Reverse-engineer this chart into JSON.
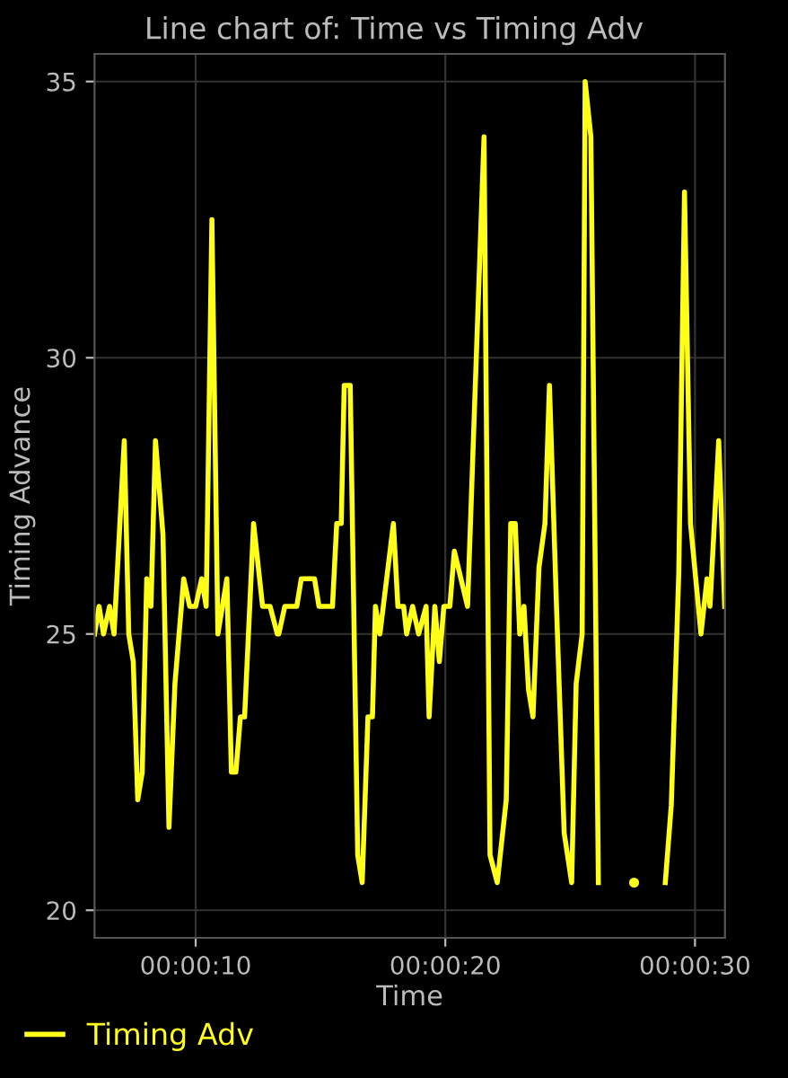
{
  "chart_data": {
    "type": "line",
    "title": "Line chart of: Time vs Timing Adv",
    "xlabel": "Time",
    "ylabel": "Timing Advance",
    "x": [
      5.95,
      6.13,
      6.31,
      6.55,
      6.73,
      7.14,
      7.32,
      7.5,
      7.68,
      7.86,
      8.04,
      8.21,
      8.39,
      8.69,
      8.93,
      9.17,
      9.52,
      9.76,
      10.0,
      10.24,
      10.42,
      10.65,
      10.89,
      11.25,
      11.43,
      11.61,
      11.79,
      11.96,
      12.32,
      12.68,
      12.98,
      13.27,
      13.33,
      13.57,
      14.05,
      14.23,
      14.76,
      14.94,
      15.48,
      15.65,
      15.83,
      15.95,
      16.19,
      16.49,
      16.67,
      16.9,
      17.08,
      17.2,
      17.38,
      17.92,
      18.1,
      18.33,
      18.45,
      18.69,
      18.93,
      19.23,
      19.35,
      19.58,
      19.76,
      19.94,
      20.18,
      20.36,
      20.89,
      21.55,
      21.79,
      22.08,
      22.44,
      22.62,
      22.8,
      22.98,
      23.15,
      23.33,
      23.51,
      23.75,
      23.99,
      24.17,
      24.46,
      24.76,
      25.06,
      25.24,
      25.48,
      25.6,
      25.83,
      26.13,
      26.37,
      26.49,
      27.02,
      27.56,
      28.21,
      28.81,
      29.05,
      29.35,
      29.58,
      29.82,
      30.24,
      30.48,
      30.6,
      30.95,
      31.19
    ],
    "series": [
      {
        "name": "Timing Adv",
        "color": "#ffff1a",
        "values": [
          25,
          25.5,
          25,
          25.5,
          25,
          28.5,
          25,
          24.5,
          22,
          22.5,
          26,
          25.5,
          28.5,
          26.8,
          21.5,
          24.1,
          26,
          25.5,
          25.5,
          26,
          25.5,
          32.5,
          25,
          26,
          22.5,
          22.5,
          23.5,
          23.5,
          27,
          25.5,
          25.5,
          25,
          25,
          25.5,
          25.5,
          26,
          26,
          25.5,
          25.5,
          27,
          27,
          29.5,
          29.5,
          21,
          20.5,
          23.5,
          23.5,
          25.5,
          25,
          27,
          25.5,
          25.5,
          25,
          25.5,
          25,
          25.5,
          23.5,
          25.5,
          24.5,
          25.5,
          25.5,
          26.5,
          25.5,
          34,
          21,
          20.5,
          22,
          27,
          27,
          25,
          25.5,
          24,
          23.5,
          26.2,
          27,
          29.5,
          25.4,
          21.4,
          20.5,
          24.1,
          25,
          35,
          34,
          20.5,
          null,
          null,
          null,
          20.5,
          null,
          20.5,
          21.9,
          26.1,
          33,
          27,
          25,
          26,
          25.5,
          28.5,
          25.5
        ]
      }
    ],
    "xlim": [
      5.95,
      31.2
    ],
    "xticks": [
      {
        "value": 10,
        "label": "00:00:10"
      },
      {
        "value": 20,
        "label": "00:00:20"
      },
      {
        "value": 30,
        "label": "00:00:30"
      }
    ],
    "ylim": [
      19.5,
      35.5
    ],
    "yticks": [
      20,
      25,
      30,
      35
    ],
    "grid": true,
    "legend": "bottom left",
    "marker": "none",
    "line_style": "solid"
  }
}
